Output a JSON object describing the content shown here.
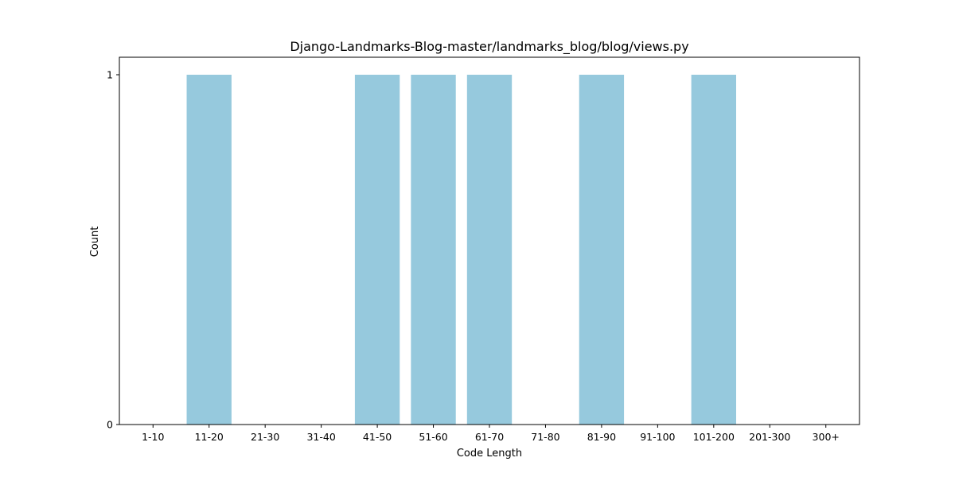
{
  "chart_data": {
    "type": "bar",
    "title": "Django-Landmarks-Blog-master/landmarks_blog/blog/views.py",
    "xlabel": "Code Length",
    "ylabel": "Count",
    "categories": [
      "1-10",
      "11-20",
      "21-30",
      "31-40",
      "41-50",
      "51-60",
      "61-70",
      "71-80",
      "81-90",
      "91-100",
      "101-200",
      "201-300",
      "300+"
    ],
    "values": [
      0,
      1,
      0,
      0,
      1,
      1,
      1,
      0,
      1,
      0,
      1,
      0,
      0
    ],
    "ylim": [
      0,
      1.05
    ],
    "yticks": [
      0,
      1
    ],
    "ytick_labels": [
      "0",
      "1"
    ],
    "bar_color": "#96c9dd",
    "grid": false,
    "legend": "none"
  }
}
